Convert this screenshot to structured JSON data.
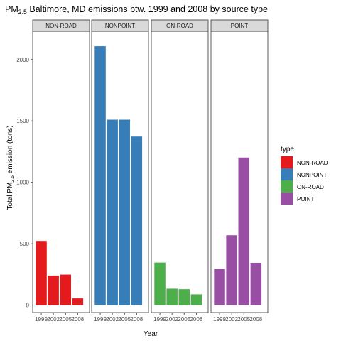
{
  "chart_data": {
    "type": "bar",
    "title": {
      "prefix": "PM",
      "sub": "2.5",
      "suffix": " Baltimore, MD emissions btw. 1999 and 2008 by source type"
    },
    "xlabel": "Year",
    "ylabel": {
      "prefix": "Total PM",
      "sub": "2.5",
      "suffix": " emission (tons)"
    },
    "ylim": [
      -60,
      2230
    ],
    "yticks": [
      0,
      500,
      1000,
      1500,
      2000
    ],
    "categories": [
      "1999",
      "2002",
      "2005",
      "2008"
    ],
    "legend": {
      "title": "type",
      "position": "right"
    },
    "panels": [
      {
        "name": "NON-ROAD",
        "color": "#E41A1C",
        "values": [
          523,
          241,
          249,
          55
        ]
      },
      {
        "name": "NONPOINT",
        "color": "#377EB8",
        "values": [
          2108,
          1510,
          1510,
          1373
        ]
      },
      {
        "name": "ON-ROAD",
        "color": "#4DAF4A",
        "values": [
          347,
          134,
          130,
          88
        ]
      },
      {
        "name": "POINT",
        "color": "#984EA3",
        "values": [
          296,
          569,
          1202,
          345
        ]
      }
    ]
  }
}
